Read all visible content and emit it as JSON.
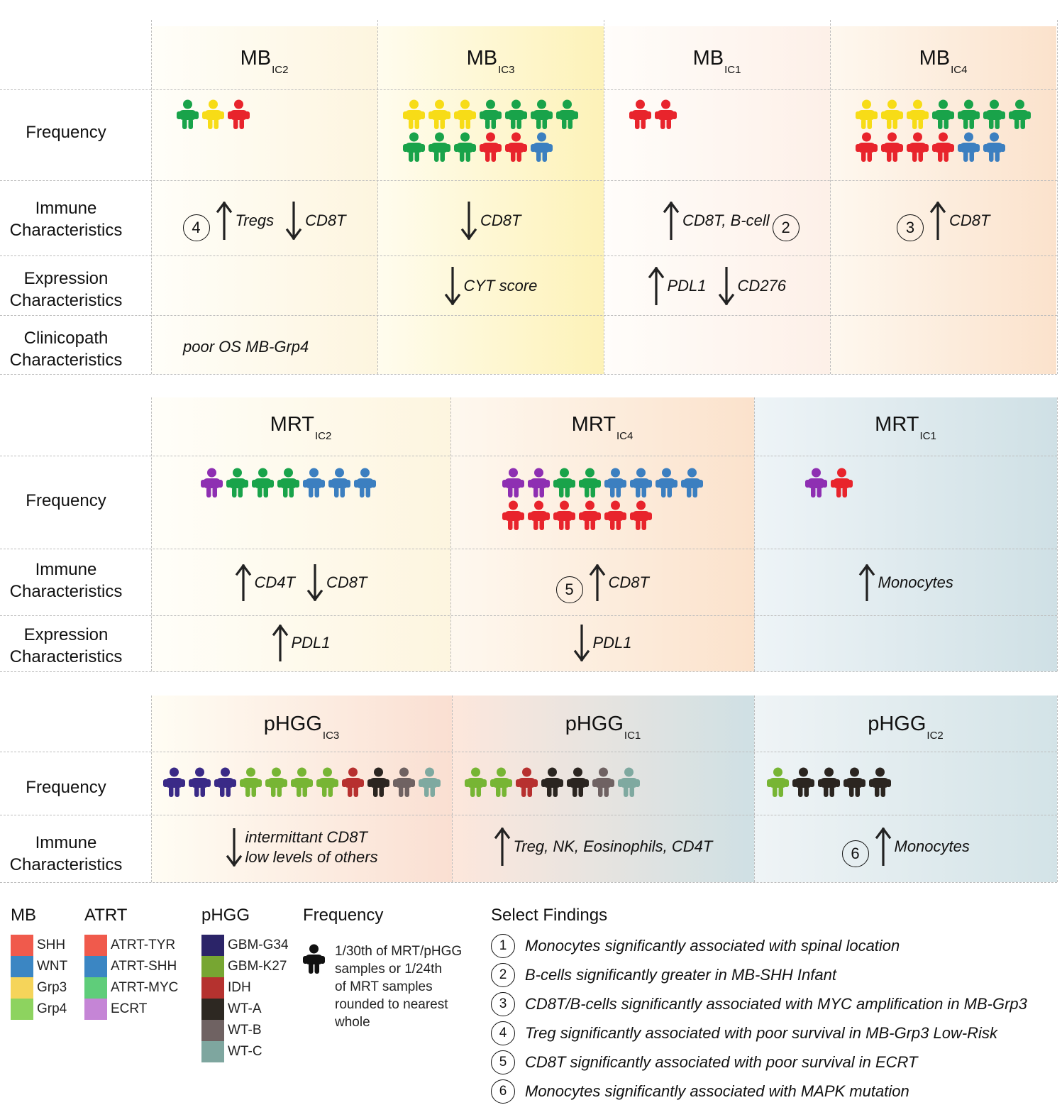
{
  "colors": {
    "SHH": "#e8242c",
    "WNT": "#3c7fc0",
    "Grp3": "#f7dc17",
    "Grp4": "#19a34a",
    "ATRT-TYR": "#e8242c",
    "ATRT-SHH": "#3c7fc0",
    "ATRT-MYC": "#19a34a",
    "ECRT": "#8e2fb2",
    "GBM-G34": "#3a2a87",
    "GBM-K27": "#77b534",
    "IDH": "#b7302f",
    "WT-A": "#2b2520",
    "WT-B": "#6f6262",
    "WT-C": "#7fa9a0",
    "legend_swatch": {
      "SHH": "#f05a4c",
      "WNT": "#3b86c3",
      "Grp3": "#f5d45a",
      "Grp4": "#8dd35f",
      "ATRT-TYR": "#f05a4c",
      "ATRT-SHH": "#3b86c3",
      "ATRT-MYC": "#5fcd7a",
      "ECRT": "#c585d6",
      "GBM-G34": "#2b2468",
      "GBM-K27": "#77a632",
      "IDH": "#b5322f",
      "WT-A": "#2d2822",
      "WT-B": "#6f6262",
      "WT-C": "#7ea69f"
    }
  },
  "row_labels": {
    "frequency": "Frequency",
    "immune": "Immune\nCharacteristics",
    "expression": "Expression\nCharacteristics",
    "clinicopath": "Clinicopath\nCharacteristics"
  },
  "mb": {
    "columns": [
      {
        "title": "MB",
        "sub": "IC2",
        "bg": "c2",
        "people": [
          "Grp4",
          "Grp3",
          "SHH"
        ],
        "immune": {
          "finding": "4",
          "items": [
            [
              "up",
              "Tregs"
            ],
            [
              "down",
              "CD8T"
            ]
          ]
        },
        "expression": [],
        "clinicopath": "poor OS MB-Grp4"
      },
      {
        "title": "MB",
        "sub": "IC3",
        "bg": "c3",
        "people": [
          "Grp3",
          "Grp3",
          "Grp3",
          "Grp4",
          "Grp4",
          "Grp4",
          "Grp4",
          "Grp4",
          "Grp4",
          "Grp4",
          "SHH",
          "SHH",
          "WNT"
        ],
        "immune": {
          "items": [
            [
              "down",
              "CD8T"
            ]
          ]
        },
        "expression": [
          [
            "down",
            "CYT score"
          ]
        ],
        "clinicopath": ""
      },
      {
        "title": "MB",
        "sub": "IC1",
        "bg": "c1",
        "people": [
          "SHH",
          "SHH"
        ],
        "immune": {
          "finding_after": "2",
          "items": [
            [
              "up",
              "CD8T, B-cell"
            ]
          ]
        },
        "expression": [
          [
            "up",
            "PDL1"
          ],
          [
            "down",
            "CD276"
          ]
        ],
        "clinicopath": ""
      },
      {
        "title": "MB",
        "sub": "IC4",
        "bg": "c4",
        "people": [
          "Grp3",
          "Grp3",
          "Grp3",
          "Grp4",
          "Grp4",
          "Grp4",
          "Grp4",
          "SHH",
          "SHH",
          "SHH",
          "SHH",
          "WNT",
          "WNT"
        ],
        "immune": {
          "finding": "3",
          "items": [
            [
              "up",
              "CD8T"
            ]
          ]
        },
        "expression": [],
        "clinicopath": ""
      }
    ]
  },
  "mrt": {
    "columns": [
      {
        "title": "MRT",
        "sub": "IC2",
        "bg": "c2",
        "people": [
          "ECRT",
          "ATRT-MYC",
          "ATRT-MYC",
          "ATRT-MYC",
          "ATRT-SHH",
          "ATRT-SHH",
          "ATRT-SHH"
        ],
        "immune": {
          "items": [
            [
              "up",
              "CD4T"
            ],
            [
              "down",
              "CD8T"
            ]
          ]
        },
        "expression": [
          [
            "up",
            "PDL1"
          ]
        ]
      },
      {
        "title": "MRT",
        "sub": "IC4",
        "bg": "c4",
        "people": [
          "ECRT",
          "ECRT",
          "ATRT-MYC",
          "ATRT-MYC",
          "ATRT-SHH",
          "ATRT-SHH",
          "ATRT-SHH",
          "ATRT-SHH",
          "ATRT-TYR",
          "ATRT-TYR",
          "ATRT-TYR",
          "ATRT-TYR",
          "ATRT-TYR",
          "ATRT-TYR"
        ],
        "immune": {
          "finding": "5",
          "items": [
            [
              "up",
              "CD8T"
            ]
          ]
        },
        "expression": [
          [
            "down",
            "PDL1"
          ]
        ]
      },
      {
        "title": "MRT",
        "sub": "IC1",
        "bg": "c1b",
        "people": [
          "ECRT",
          "ATRT-TYR"
        ],
        "immune": {
          "items": [
            [
              "up",
              "Monocytes"
            ]
          ]
        },
        "expression": []
      }
    ]
  },
  "phgg": {
    "columns": [
      {
        "title": "pHGG",
        "sub": "IC3",
        "bg": "p3",
        "people": [
          "GBM-G34",
          "GBM-G34",
          "GBM-G34",
          "GBM-K27",
          "GBM-K27",
          "GBM-K27",
          "GBM-K27",
          "IDH",
          "WT-A",
          "WT-B",
          "WT-C"
        ],
        "immune": {
          "items": [
            [
              "down",
              "intermittant CD8T\nlow levels of others"
            ]
          ]
        }
      },
      {
        "title": "pHGG",
        "sub": "IC1",
        "bg": "p1",
        "people": [
          "GBM-K27",
          "GBM-K27",
          "IDH",
          "WT-A",
          "WT-A",
          "WT-B",
          "WT-C"
        ],
        "immune": {
          "items": [
            [
              "up",
              "Treg, NK, Eosinophils, CD4T"
            ]
          ]
        }
      },
      {
        "title": "pHGG",
        "sub": "IC2",
        "bg": "p2",
        "people": [
          "GBM-K27",
          "WT-A",
          "WT-A",
          "WT-A",
          "WT-A"
        ],
        "immune": {
          "finding": "6",
          "items": [
            [
              "up",
              "Monocytes"
            ]
          ]
        }
      }
    ]
  },
  "legend": {
    "mb": {
      "title": "MB",
      "items": [
        "SHH",
        "WNT",
        "Grp3",
        "Grp4"
      ]
    },
    "atrt": {
      "title": "ATRT",
      "items": [
        "ATRT-TYR",
        "ATRT-SHH",
        "ATRT-MYC",
        "ECRT"
      ]
    },
    "phgg": {
      "title": "pHGG",
      "items": [
        "GBM-G34",
        "GBM-K27",
        "IDH",
        "WT-A",
        "WT-B",
        "WT-C"
      ]
    },
    "frequency": {
      "title": "Frequency",
      "text": "1/30th of MRT/pHGG\nsamples or 1/24th\nof MRT samples\nrounded to nearest\nwhole"
    }
  },
  "findings": {
    "title": "Select Findings",
    "items": [
      {
        "n": "1",
        "text": "Monocytes significantly associated with spinal location"
      },
      {
        "n": "2",
        "text": "B-cells significantly greater in MB-SHH Infant"
      },
      {
        "n": "3",
        "text": "CD8T/B-cells significantly associated with MYC amplification in MB-Grp3"
      },
      {
        "n": "4",
        "text": "Treg significantly associated with poor survival in MB-Grp3 Low-Risk"
      },
      {
        "n": "5",
        "text": "CD8T significantly associated with poor survival in ECRT"
      },
      {
        "n": "6",
        "text": "Monocytes significantly associated with MAPK mutation"
      }
    ]
  }
}
